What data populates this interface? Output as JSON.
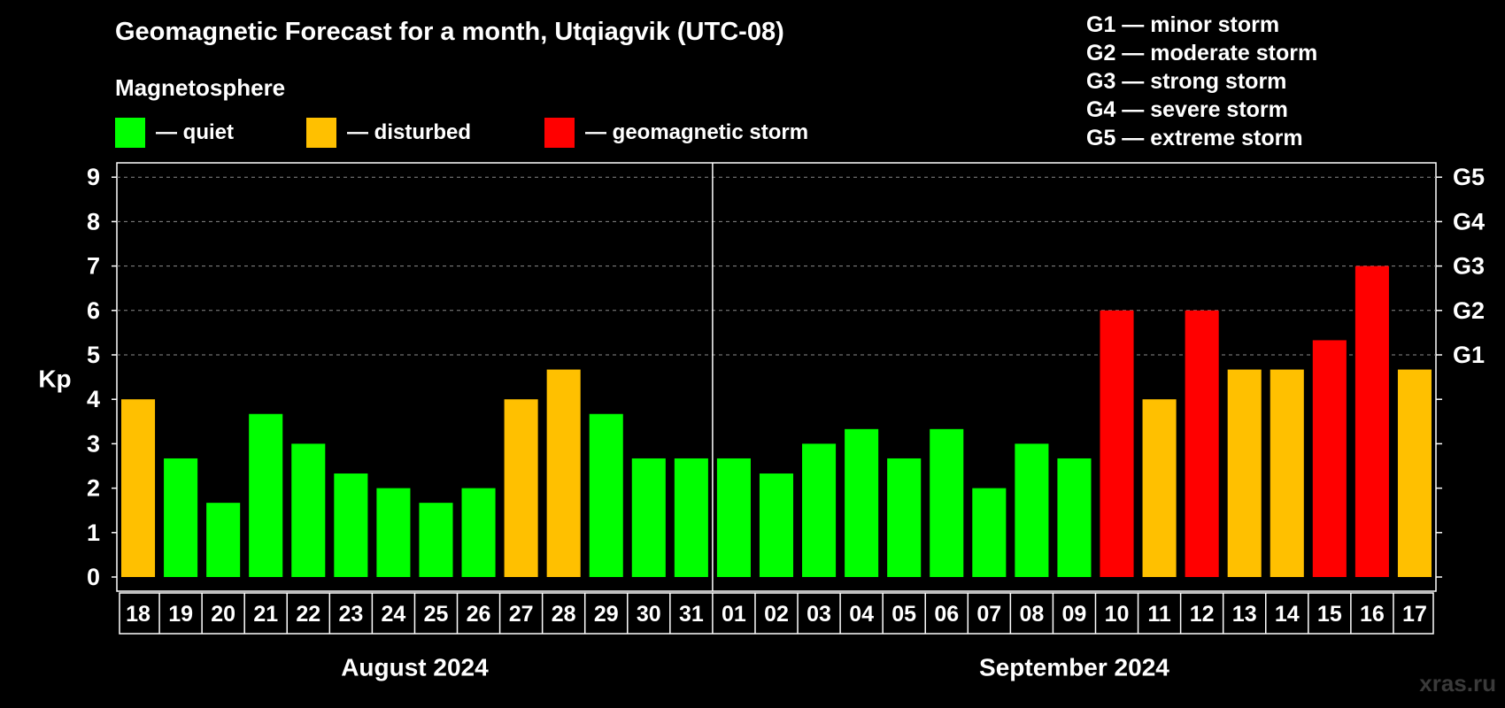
{
  "header": {
    "title": "Geomagnetic Forecast for a month, Utqiagvik (UTC-08)",
    "subtitle": "Magnetosphere"
  },
  "legend": [
    {
      "label": "— quiet",
      "color": "#00ff00"
    },
    {
      "label": "— disturbed",
      "color": "#ffc000"
    },
    {
      "label": "— geomagnetic storm",
      "color": "#ff0000"
    }
  ],
  "g_scale": [
    "G1 — minor storm",
    "G2 — moderate storm",
    "G3 — strong storm",
    "G4 — severe storm",
    "G5 — extreme storm"
  ],
  "watermark": "xras.ru",
  "chart_data": {
    "type": "bar",
    "ylabel": "Kp",
    "ylim": [
      0,
      9
    ],
    "y_ticks": [
      0,
      1,
      2,
      3,
      4,
      5,
      6,
      7,
      8,
      9
    ],
    "right_axis_labels": [
      {
        "kp": 5,
        "label": "G1"
      },
      {
        "kp": 6,
        "label": "G2"
      },
      {
        "kp": 7,
        "label": "G3"
      },
      {
        "kp": 8,
        "label": "G4"
      },
      {
        "kp": 9,
        "label": "G5"
      }
    ],
    "grid": "dashed horizontal at Kp 5–9",
    "categories": [
      "18",
      "19",
      "20",
      "21",
      "22",
      "23",
      "24",
      "25",
      "26",
      "27",
      "28",
      "29",
      "30",
      "31",
      "01",
      "02",
      "03",
      "04",
      "05",
      "06",
      "07",
      "08",
      "09",
      "10",
      "11",
      "12",
      "13",
      "14",
      "15",
      "16",
      "17"
    ],
    "values": [
      4,
      2.67,
      1.67,
      3.67,
      3,
      2.33,
      2,
      1.67,
      2,
      4,
      4.67,
      3.67,
      2.67,
      2.67,
      2.67,
      2.33,
      3,
      3.33,
      2.67,
      3.33,
      2,
      3,
      2.67,
      6,
      4,
      6,
      4.67,
      4.67,
      5.33,
      7,
      4.67
    ],
    "status": [
      "disturbed",
      "quiet",
      "quiet",
      "quiet",
      "quiet",
      "quiet",
      "quiet",
      "quiet",
      "quiet",
      "disturbed",
      "disturbed",
      "quiet",
      "quiet",
      "quiet",
      "quiet",
      "quiet",
      "quiet",
      "quiet",
      "quiet",
      "quiet",
      "quiet",
      "quiet",
      "quiet",
      "storm",
      "disturbed",
      "storm",
      "disturbed",
      "disturbed",
      "storm",
      "storm",
      "disturbed"
    ],
    "colors": {
      "quiet": "#00ff00",
      "disturbed": "#ffc000",
      "storm": "#ff0000"
    },
    "months": [
      {
        "label": "August 2024",
        "start": 0,
        "count": 14
      },
      {
        "label": "September 2024",
        "start": 14,
        "count": 17
      }
    ]
  }
}
